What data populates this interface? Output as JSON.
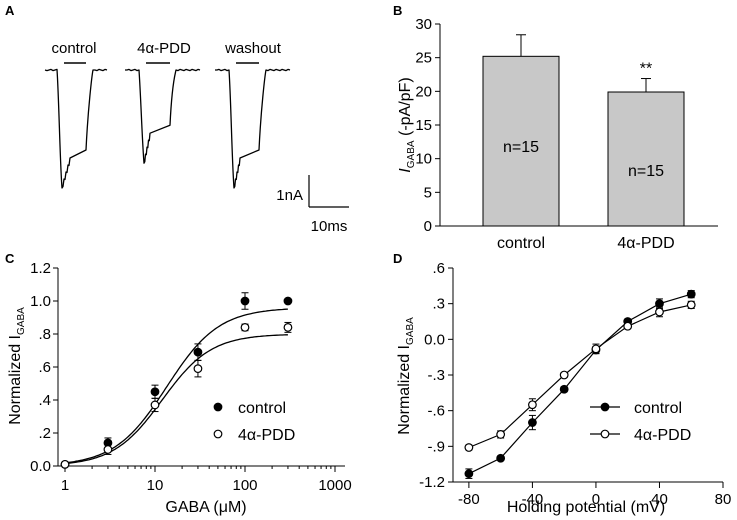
{
  "panels": {
    "A": {
      "letter": "A",
      "trace_labels": [
        "control",
        "4α-PDD",
        "washout"
      ],
      "scale_current": "1nA",
      "scale_time": "10ms",
      "peaks_relative": [
        1.0,
        0.79,
        1.0
      ]
    },
    "B": {
      "letter": "B"
    },
    "C": {
      "letter": "C"
    },
    "D": {
      "letter": "D"
    }
  },
  "chart_data": [
    {
      "panel": "B",
      "type": "bar",
      "categories": [
        "control",
        "4α-PDD"
      ],
      "values": [
        25.2,
        19.9
      ],
      "errors": [
        3.2,
        2.0
      ],
      "bar_labels": [
        "n=15",
        "n=15"
      ],
      "significance": [
        "",
        "**"
      ],
      "ylabel_main": "I",
      "ylabel_sub": "GABA",
      "ylabel_rest": " (-pA/pF)",
      "ylim": [
        0,
        30
      ],
      "yticks": [
        0,
        5,
        10,
        15,
        20,
        25,
        30
      ],
      "bar_color": "#c8c8c8"
    },
    {
      "panel": "C",
      "type": "scatter",
      "xscale": "log",
      "xlim": [
        1,
        1000
      ],
      "xticks": [
        "1",
        "10",
        "100",
        "1000"
      ],
      "xlabel": "GABA (μM)",
      "ylabel_main": "Normalized I",
      "ylabel_sub": "GABA",
      "ylim": [
        0,
        1.2
      ],
      "yticks": [
        "0.0",
        ".2",
        ".4",
        ".6",
        ".8",
        "1.0",
        "1.2"
      ],
      "legend_position": "bottom-right",
      "series": [
        {
          "name": "control",
          "marker": "filled",
          "x": [
            1,
            3,
            10,
            30,
            100,
            300
          ],
          "y": [
            0.01,
            0.14,
            0.45,
            0.69,
            1.0,
            1.0
          ],
          "err": [
            0.01,
            0.03,
            0.04,
            0.05,
            0.05,
            0.0
          ],
          "fit": {
            "top": 0.96,
            "ec50": 13.5,
            "hill": 1.5
          }
        },
        {
          "name": "4α-PDD",
          "marker": "open",
          "x": [
            1,
            3,
            10,
            30,
            100,
            300
          ],
          "y": [
            0.01,
            0.1,
            0.37,
            0.59,
            0.84,
            0.84
          ],
          "err": [
            0.01,
            0.03,
            0.04,
            0.05,
            0.02,
            0.03
          ],
          "fit": {
            "top": 0.8,
            "ec50": 12.0,
            "hill": 1.6
          }
        }
      ]
    },
    {
      "panel": "D",
      "type": "line",
      "xlim": [
        -90,
        80
      ],
      "xticks": [
        -80,
        -40,
        0,
        40,
        80
      ],
      "xlabel": "Holding potential (mV)",
      "ylabel_main": "Normalized I",
      "ylabel_sub": "GABA",
      "ylim": [
        -1.2,
        0.6
      ],
      "yticks": [
        "-1.2",
        "-.9",
        "-.6",
        "-.3",
        "0.0",
        ".3",
        ".6"
      ],
      "legend_position": "bottom-right",
      "series": [
        {
          "name": "control",
          "marker": "filled",
          "x": [
            -80,
            -60,
            -40,
            -20,
            0,
            20,
            40,
            60
          ],
          "y": [
            -1.13,
            -1.0,
            -0.7,
            -0.42,
            -0.09,
            0.15,
            0.3,
            0.38
          ],
          "err": [
            0.04,
            0.01,
            0.06,
            0.02,
            0.03,
            0.02,
            0.04,
            0.03
          ]
        },
        {
          "name": "4α-PDD",
          "marker": "open",
          "x": [
            -80,
            -60,
            -40,
            -20,
            0,
            20,
            40,
            60
          ],
          "y": [
            -0.91,
            -0.8,
            -0.55,
            -0.3,
            -0.08,
            0.11,
            0.23,
            0.29
          ],
          "err": [
            0.02,
            0.03,
            0.05,
            0.02,
            0.04,
            0.02,
            0.04,
            0.03
          ]
        }
      ]
    }
  ]
}
